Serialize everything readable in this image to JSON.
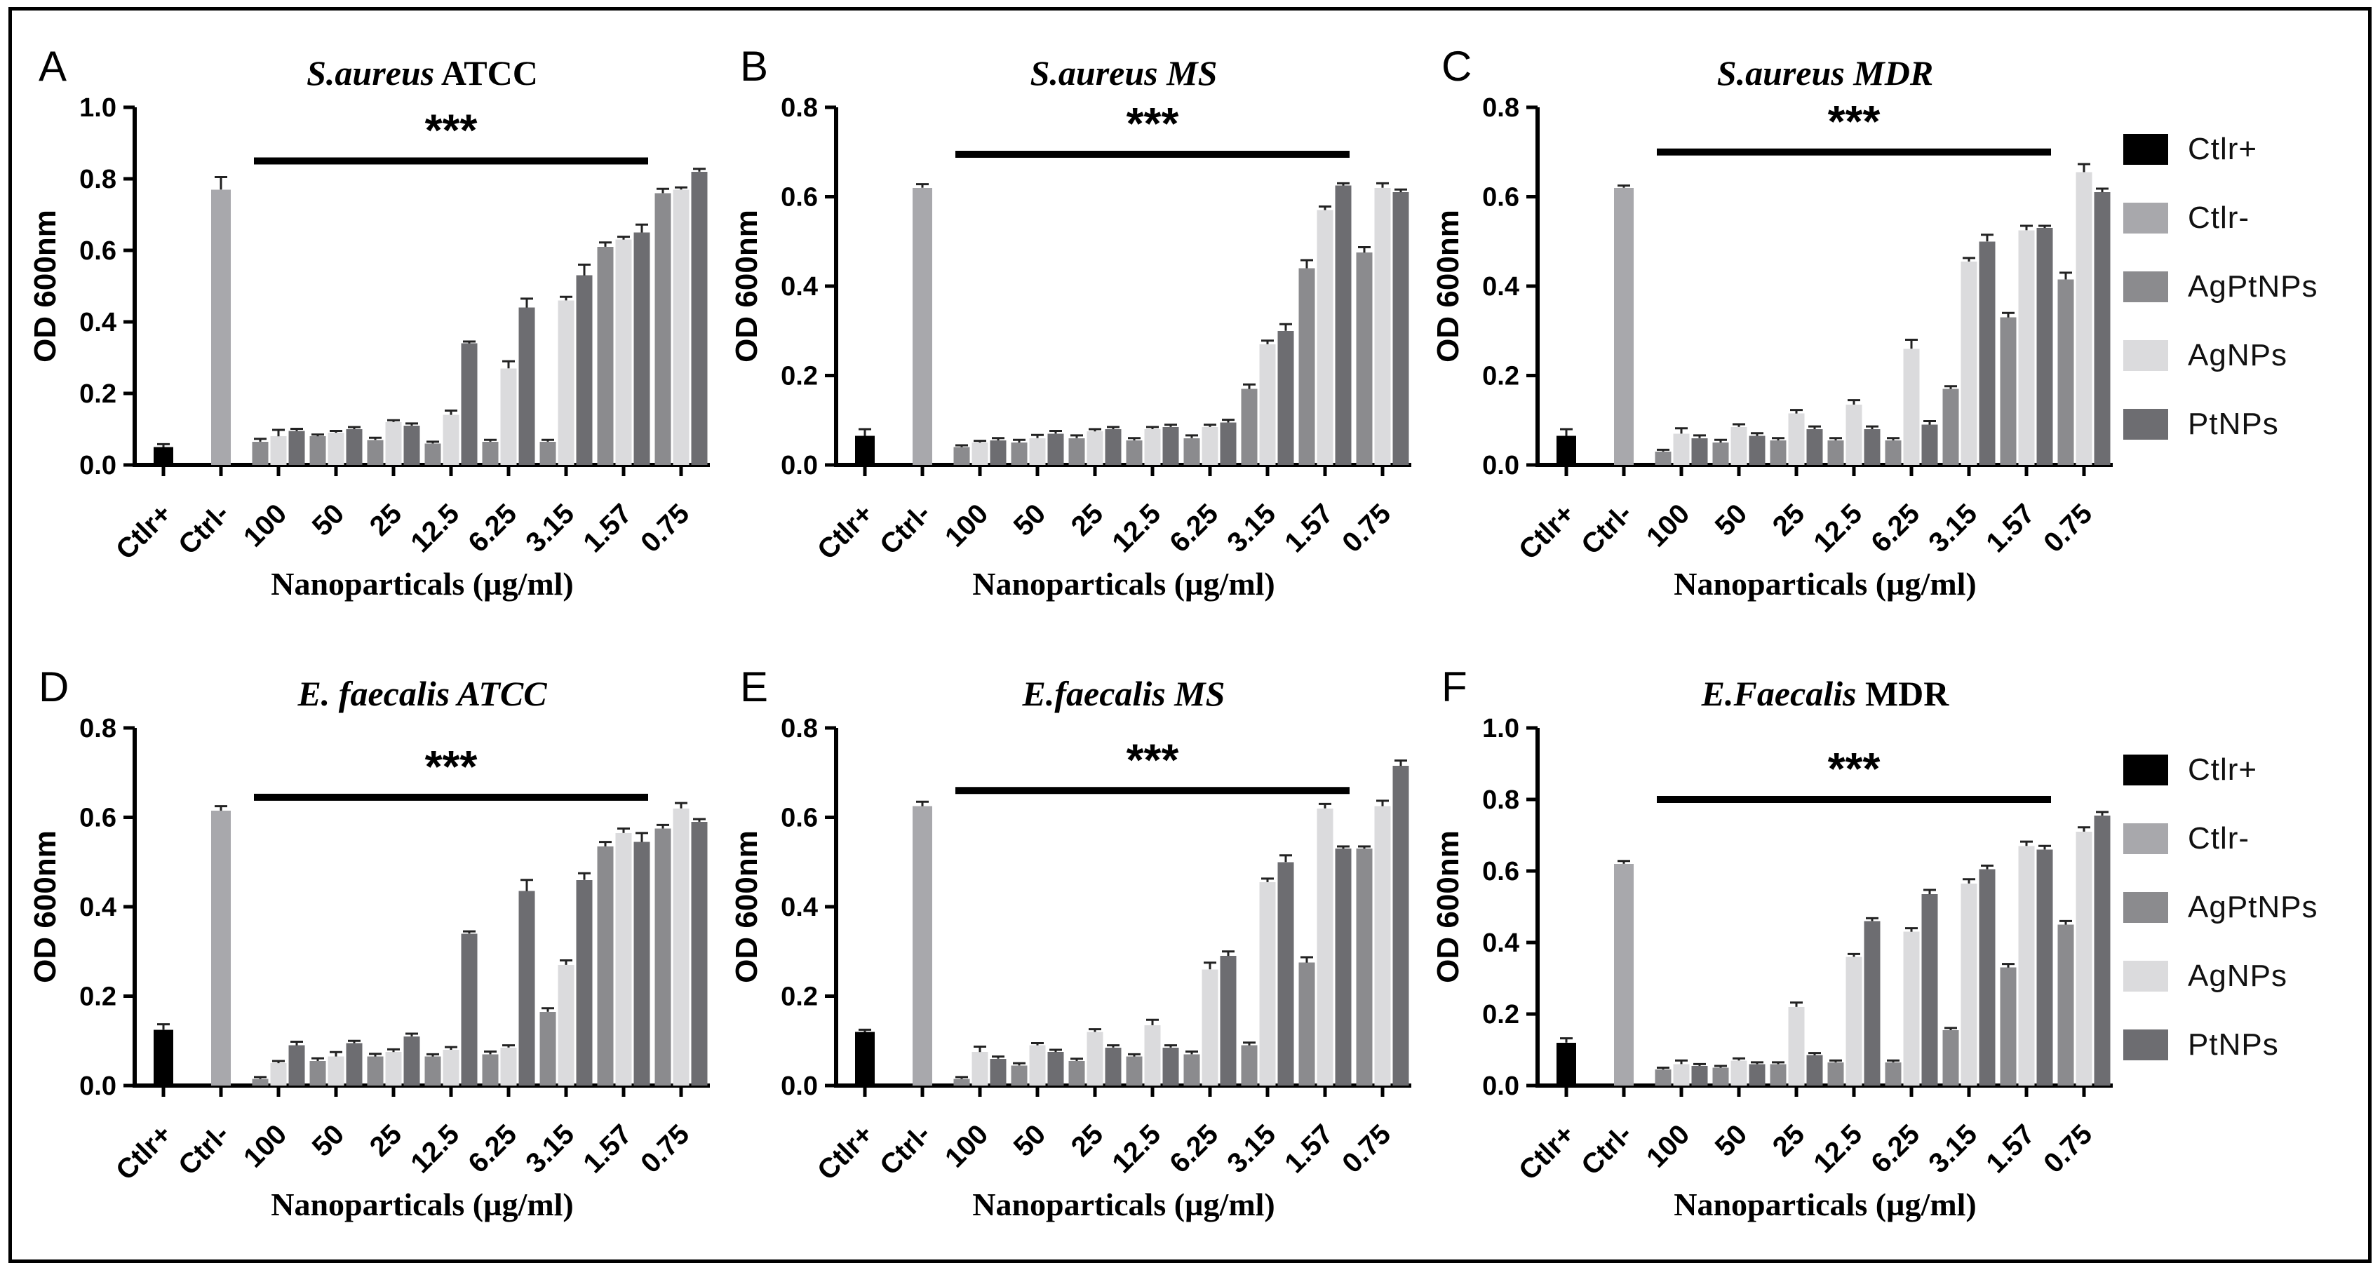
{
  "figure": {
    "background": "#ffffff",
    "border_color": "#000000"
  },
  "legend": {
    "items": [
      {
        "label": "Ctlr+",
        "color": "#000000"
      },
      {
        "label": "Ctlr-",
        "color": "#a8a8ac"
      },
      {
        "label": "AgPtNPs",
        "color": "#8b8b8e"
      },
      {
        "label": "AgNPs",
        "color": "#dbdbdd"
      },
      {
        "label": "PtNPs",
        "color": "#6d6d71"
      }
    ]
  },
  "axes": {
    "y_label": "OD 600nm",
    "x_label": "Nanoparticals (µg/ml)"
  },
  "chart_data": [
    {
      "type": "bar",
      "letter": "A",
      "title_italic": "S.aureus",
      "title_plain": " ATCC",
      "ylabel": "OD 600nm",
      "xlabel": "Nanoparticals (µg/ml)",
      "ylim": [
        0,
        1.0
      ],
      "ytick_step": 0.2,
      "categories": [
        "Ctlr+",
        "Ctrl-",
        "100",
        "50",
        "25",
        "12.5",
        "6.25",
        "3.15",
        "1.57",
        "0.75"
      ],
      "ctlr_plus": {
        "value": 0.05,
        "err": 0.008
      },
      "ctrl_minus": {
        "value": 0.77,
        "err": 0.035
      },
      "series": [
        {
          "name": "AgPtNPs",
          "values": [
            0.065,
            0.08,
            0.07,
            0.06,
            0.065,
            0.065,
            0.61,
            0.76
          ],
          "err": [
            0.008,
            0.005,
            0.006,
            0.005,
            0.005,
            0.005,
            0.012,
            0.012
          ]
        },
        {
          "name": "AgNPs",
          "values": [
            0.08,
            0.09,
            0.12,
            0.14,
            0.27,
            0.46,
            0.63,
            0.77
          ],
          "err": [
            0.018,
            0.005,
            0.005,
            0.012,
            0.02,
            0.01,
            0.008,
            0.006
          ]
        },
        {
          "name": "PtNPs",
          "values": [
            0.095,
            0.1,
            0.11,
            0.34,
            0.44,
            0.53,
            0.65,
            0.82
          ],
          "err": [
            0.006,
            0.006,
            0.006,
            0.005,
            0.025,
            0.03,
            0.022,
            0.008
          ]
        }
      ],
      "significance": {
        "label": "***",
        "y": 0.85,
        "from": "100",
        "to": "1.57"
      }
    },
    {
      "type": "bar",
      "letter": "B",
      "title_italic": "S.aureus MS",
      "title_plain": "",
      "ylabel": "OD 600nm",
      "xlabel": "Nanoparticals (µg/ml)",
      "ylim": [
        0,
        0.8
      ],
      "ytick_step": 0.2,
      "categories": [
        "Ctlr+",
        "Ctrl-",
        "100",
        "50",
        "25",
        "12.5",
        "6.25",
        "3.15",
        "1.57",
        "0.75"
      ],
      "ctlr_plus": {
        "value": 0.065,
        "err": 0.015
      },
      "ctrl_minus": {
        "value": 0.62,
        "err": 0.008
      },
      "series": [
        {
          "name": "AgPtNPs",
          "values": [
            0.04,
            0.05,
            0.06,
            0.055,
            0.06,
            0.17,
            0.44,
            0.475
          ],
          "err": [
            0.004,
            0.006,
            0.006,
            0.005,
            0.006,
            0.01,
            0.018,
            0.012
          ]
        },
        {
          "name": "AgNPs",
          "values": [
            0.05,
            0.06,
            0.075,
            0.08,
            0.085,
            0.27,
            0.57,
            0.62
          ],
          "err": [
            0.004,
            0.007,
            0.005,
            0.005,
            0.005,
            0.008,
            0.008,
            0.01
          ]
        },
        {
          "name": "PtNPs",
          "values": [
            0.055,
            0.07,
            0.08,
            0.085,
            0.095,
            0.3,
            0.625,
            0.61
          ],
          "err": [
            0.005,
            0.006,
            0.005,
            0.005,
            0.006,
            0.015,
            0.005,
            0.006
          ]
        }
      ],
      "significance": {
        "label": "***",
        "y": 0.695,
        "from": "100",
        "to": "1.57"
      }
    },
    {
      "type": "bar",
      "letter": "C",
      "title_italic": "S.aureus MDR",
      "title_plain": "",
      "ylabel": "OD 600nm",
      "xlabel": "Nanoparticals (µg/ml)",
      "ylim": [
        0,
        0.8
      ],
      "ytick_step": 0.2,
      "categories": [
        "Ctlr+",
        "Ctrl-",
        "100",
        "50",
        "25",
        "12.5",
        "6.25",
        "3.15",
        "1.57",
        "0.75"
      ],
      "ctlr_plus": {
        "value": 0.065,
        "err": 0.015
      },
      "ctrl_minus": {
        "value": 0.62,
        "err": 0.005
      },
      "series": [
        {
          "name": "AgPtNPs",
          "values": [
            0.03,
            0.05,
            0.055,
            0.055,
            0.055,
            0.17,
            0.33,
            0.415
          ],
          "err": [
            0.004,
            0.006,
            0.005,
            0.005,
            0.005,
            0.006,
            0.01,
            0.015
          ]
        },
        {
          "name": "AgNPs",
          "values": [
            0.07,
            0.085,
            0.115,
            0.135,
            0.26,
            0.455,
            0.525,
            0.655
          ],
          "err": [
            0.012,
            0.006,
            0.008,
            0.01,
            0.02,
            0.008,
            0.01,
            0.018
          ]
        },
        {
          "name": "PtNPs",
          "values": [
            0.06,
            0.065,
            0.08,
            0.08,
            0.09,
            0.5,
            0.53,
            0.61
          ],
          "err": [
            0.006,
            0.006,
            0.006,
            0.006,
            0.008,
            0.015,
            0.005,
            0.008
          ]
        }
      ],
      "significance": {
        "label": "***",
        "y": 0.7,
        "from": "100",
        "to": "1.57"
      }
    },
    {
      "type": "bar",
      "letter": "D",
      "title_italic": "E. faecalis ATCC",
      "title_plain": "",
      "ylabel": "OD 600nm",
      "xlabel": "Nanoparticals (µg/ml)",
      "ylim": [
        0,
        0.8
      ],
      "ytick_step": 0.2,
      "categories": [
        "Ctlr+",
        "Ctrl-",
        "100",
        "50",
        "25",
        "12.5",
        "6.25",
        "3.15",
        "1.57",
        "0.75"
      ],
      "ctlr_plus": {
        "value": 0.125,
        "err": 0.012
      },
      "ctrl_minus": {
        "value": 0.615,
        "err": 0.01
      },
      "series": [
        {
          "name": "AgPtNPs",
          "values": [
            0.015,
            0.055,
            0.065,
            0.065,
            0.07,
            0.165,
            0.535,
            0.575
          ],
          "err": [
            0.004,
            0.006,
            0.006,
            0.005,
            0.006,
            0.008,
            0.01,
            0.008
          ]
        },
        {
          "name": "AgNPs",
          "values": [
            0.05,
            0.065,
            0.075,
            0.08,
            0.085,
            0.27,
            0.565,
            0.62
          ],
          "err": [
            0.005,
            0.01,
            0.006,
            0.006,
            0.005,
            0.01,
            0.01,
            0.012
          ]
        },
        {
          "name": "PtNPs",
          "values": [
            0.09,
            0.095,
            0.11,
            0.34,
            0.435,
            0.46,
            0.545,
            0.59
          ],
          "err": [
            0.008,
            0.005,
            0.006,
            0.005,
            0.025,
            0.015,
            0.02,
            0.006
          ]
        }
      ],
      "significance": {
        "label": "***",
        "y": 0.645,
        "from": "100",
        "to": "1.57"
      }
    },
    {
      "type": "bar",
      "letter": "E",
      "title_italic": "E.faecalis MS",
      "title_plain": "",
      "ylabel": "OD 600nm",
      "xlabel": "Nanoparticals (µg/ml)",
      "ylim": [
        0,
        0.8
      ],
      "ytick_step": 0.2,
      "categories": [
        "Ctlr+",
        "Ctrl-",
        "100",
        "50",
        "25",
        "12.5",
        "6.25",
        "3.15",
        "1.57",
        "0.75"
      ],
      "ctlr_plus": {
        "value": 0.12,
        "err": 0.005
      },
      "ctrl_minus": {
        "value": 0.625,
        "err": 0.01
      },
      "series": [
        {
          "name": "AgPtNPs",
          "values": [
            0.015,
            0.045,
            0.055,
            0.065,
            0.07,
            0.09,
            0.275,
            0.53
          ],
          "err": [
            0.004,
            0.005,
            0.005,
            0.005,
            0.006,
            0.006,
            0.012,
            0.005
          ]
        },
        {
          "name": "AgNPs",
          "values": [
            0.075,
            0.09,
            0.12,
            0.135,
            0.26,
            0.455,
            0.62,
            0.625
          ],
          "err": [
            0.012,
            0.005,
            0.006,
            0.012,
            0.015,
            0.008,
            0.01,
            0.012
          ]
        },
        {
          "name": "PtNPs",
          "values": [
            0.06,
            0.075,
            0.085,
            0.085,
            0.29,
            0.5,
            0.53,
            0.715
          ],
          "err": [
            0.005,
            0.005,
            0.005,
            0.005,
            0.01,
            0.015,
            0.005,
            0.012
          ]
        }
      ],
      "significance": {
        "label": "***",
        "y": 0.66,
        "from": "100",
        "to": "1.57"
      }
    },
    {
      "type": "bar",
      "letter": "F",
      "title_italic": "E.Faecalis",
      "title_plain": " MDR",
      "ylabel": "OD 600nm",
      "xlabel": "Nanoparticals (µg/ml)",
      "ylim": [
        0,
        1.0
      ],
      "ytick_step": 0.2,
      "categories": [
        "Ctlr+",
        "Ctrl-",
        "100",
        "50",
        "25",
        "12.5",
        "6.25",
        "3.15",
        "1.57",
        "0.75"
      ],
      "ctlr_plus": {
        "value": 0.12,
        "err": 0.012
      },
      "ctrl_minus": {
        "value": 0.62,
        "err": 0.008
      },
      "series": [
        {
          "name": "AgPtNPs",
          "values": [
            0.045,
            0.05,
            0.06,
            0.065,
            0.065,
            0.155,
            0.33,
            0.45
          ],
          "err": [
            0.005,
            0.005,
            0.005,
            0.005,
            0.005,
            0.006,
            0.01,
            0.01
          ]
        },
        {
          "name": "AgNPs",
          "values": [
            0.06,
            0.07,
            0.22,
            0.36,
            0.43,
            0.565,
            0.67,
            0.71
          ],
          "err": [
            0.01,
            0.006,
            0.012,
            0.008,
            0.01,
            0.012,
            0.012,
            0.012
          ]
        },
        {
          "name": "PtNPs",
          "values": [
            0.055,
            0.06,
            0.085,
            0.46,
            0.535,
            0.605,
            0.66,
            0.755
          ],
          "err": [
            0.005,
            0.005,
            0.006,
            0.008,
            0.012,
            0.01,
            0.01,
            0.01
          ]
        }
      ],
      "significance": {
        "label": "***",
        "y": 0.8,
        "from": "100",
        "to": "1.57"
      }
    }
  ]
}
